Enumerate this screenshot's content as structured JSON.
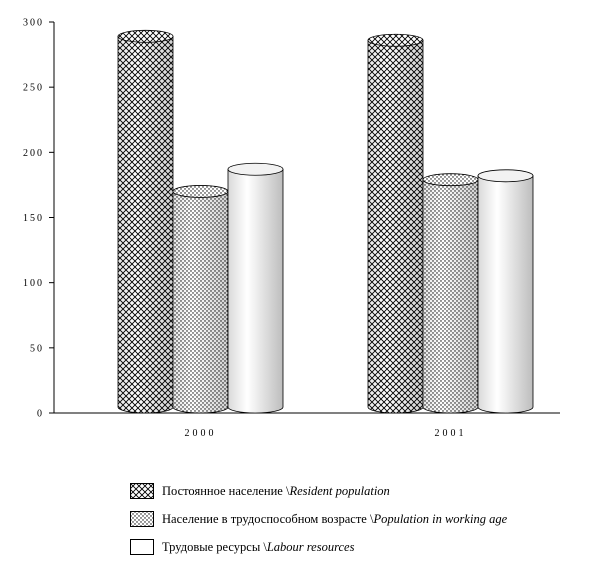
{
  "chart_data": {
    "type": "bar",
    "title": "",
    "xlabel": "",
    "ylabel": "",
    "ylim": [
      0,
      300
    ],
    "yticks": [
      0,
      50,
      100,
      150,
      200,
      250,
      300
    ],
    "categories": [
      "2000",
      "2001"
    ],
    "grid": false,
    "legend_position": "bottom",
    "series": [
      {
        "name_ru": "Постоянное население \\",
        "name_en": "Resident population",
        "pattern": "crosshatch",
        "values": [
          289,
          286
        ]
      },
      {
        "name_ru": "Население в трудоспособном возрасте \\",
        "name_en": "Population in working age",
        "pattern": "dots",
        "values": [
          170,
          179
        ]
      },
      {
        "name_ru": "Трудовые ресурсы \\",
        "name_en": "Labour resources",
        "pattern": "plain",
        "values": [
          187,
          182
        ]
      }
    ]
  }
}
